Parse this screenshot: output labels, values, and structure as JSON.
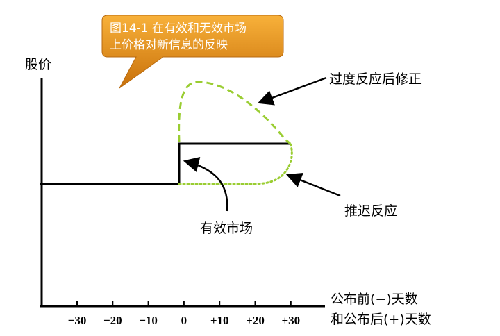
{
  "callout": {
    "line1": "图14-1 在有效和无效市场",
    "line2": "上价格对新信息的反映"
  },
  "axes": {
    "y_label": "股价",
    "x_label_line1": "公布前(−)天数",
    "x_label_line2": "和公布后(+)天数",
    "x_ticks": [
      "−30",
      "−20",
      "−10",
      "0",
      "+10",
      "+20",
      "+30"
    ]
  },
  "annotations": {
    "overreaction": "过度反应后修正",
    "delayed": "推迟反应",
    "efficient": "有效市场"
  },
  "colors": {
    "callout_top": "#f5a623",
    "callout_bottom": "#c9720c",
    "dashed_curve": "#9acd32",
    "dotted_curve": "#9acd32",
    "axis": "#000000"
  }
}
